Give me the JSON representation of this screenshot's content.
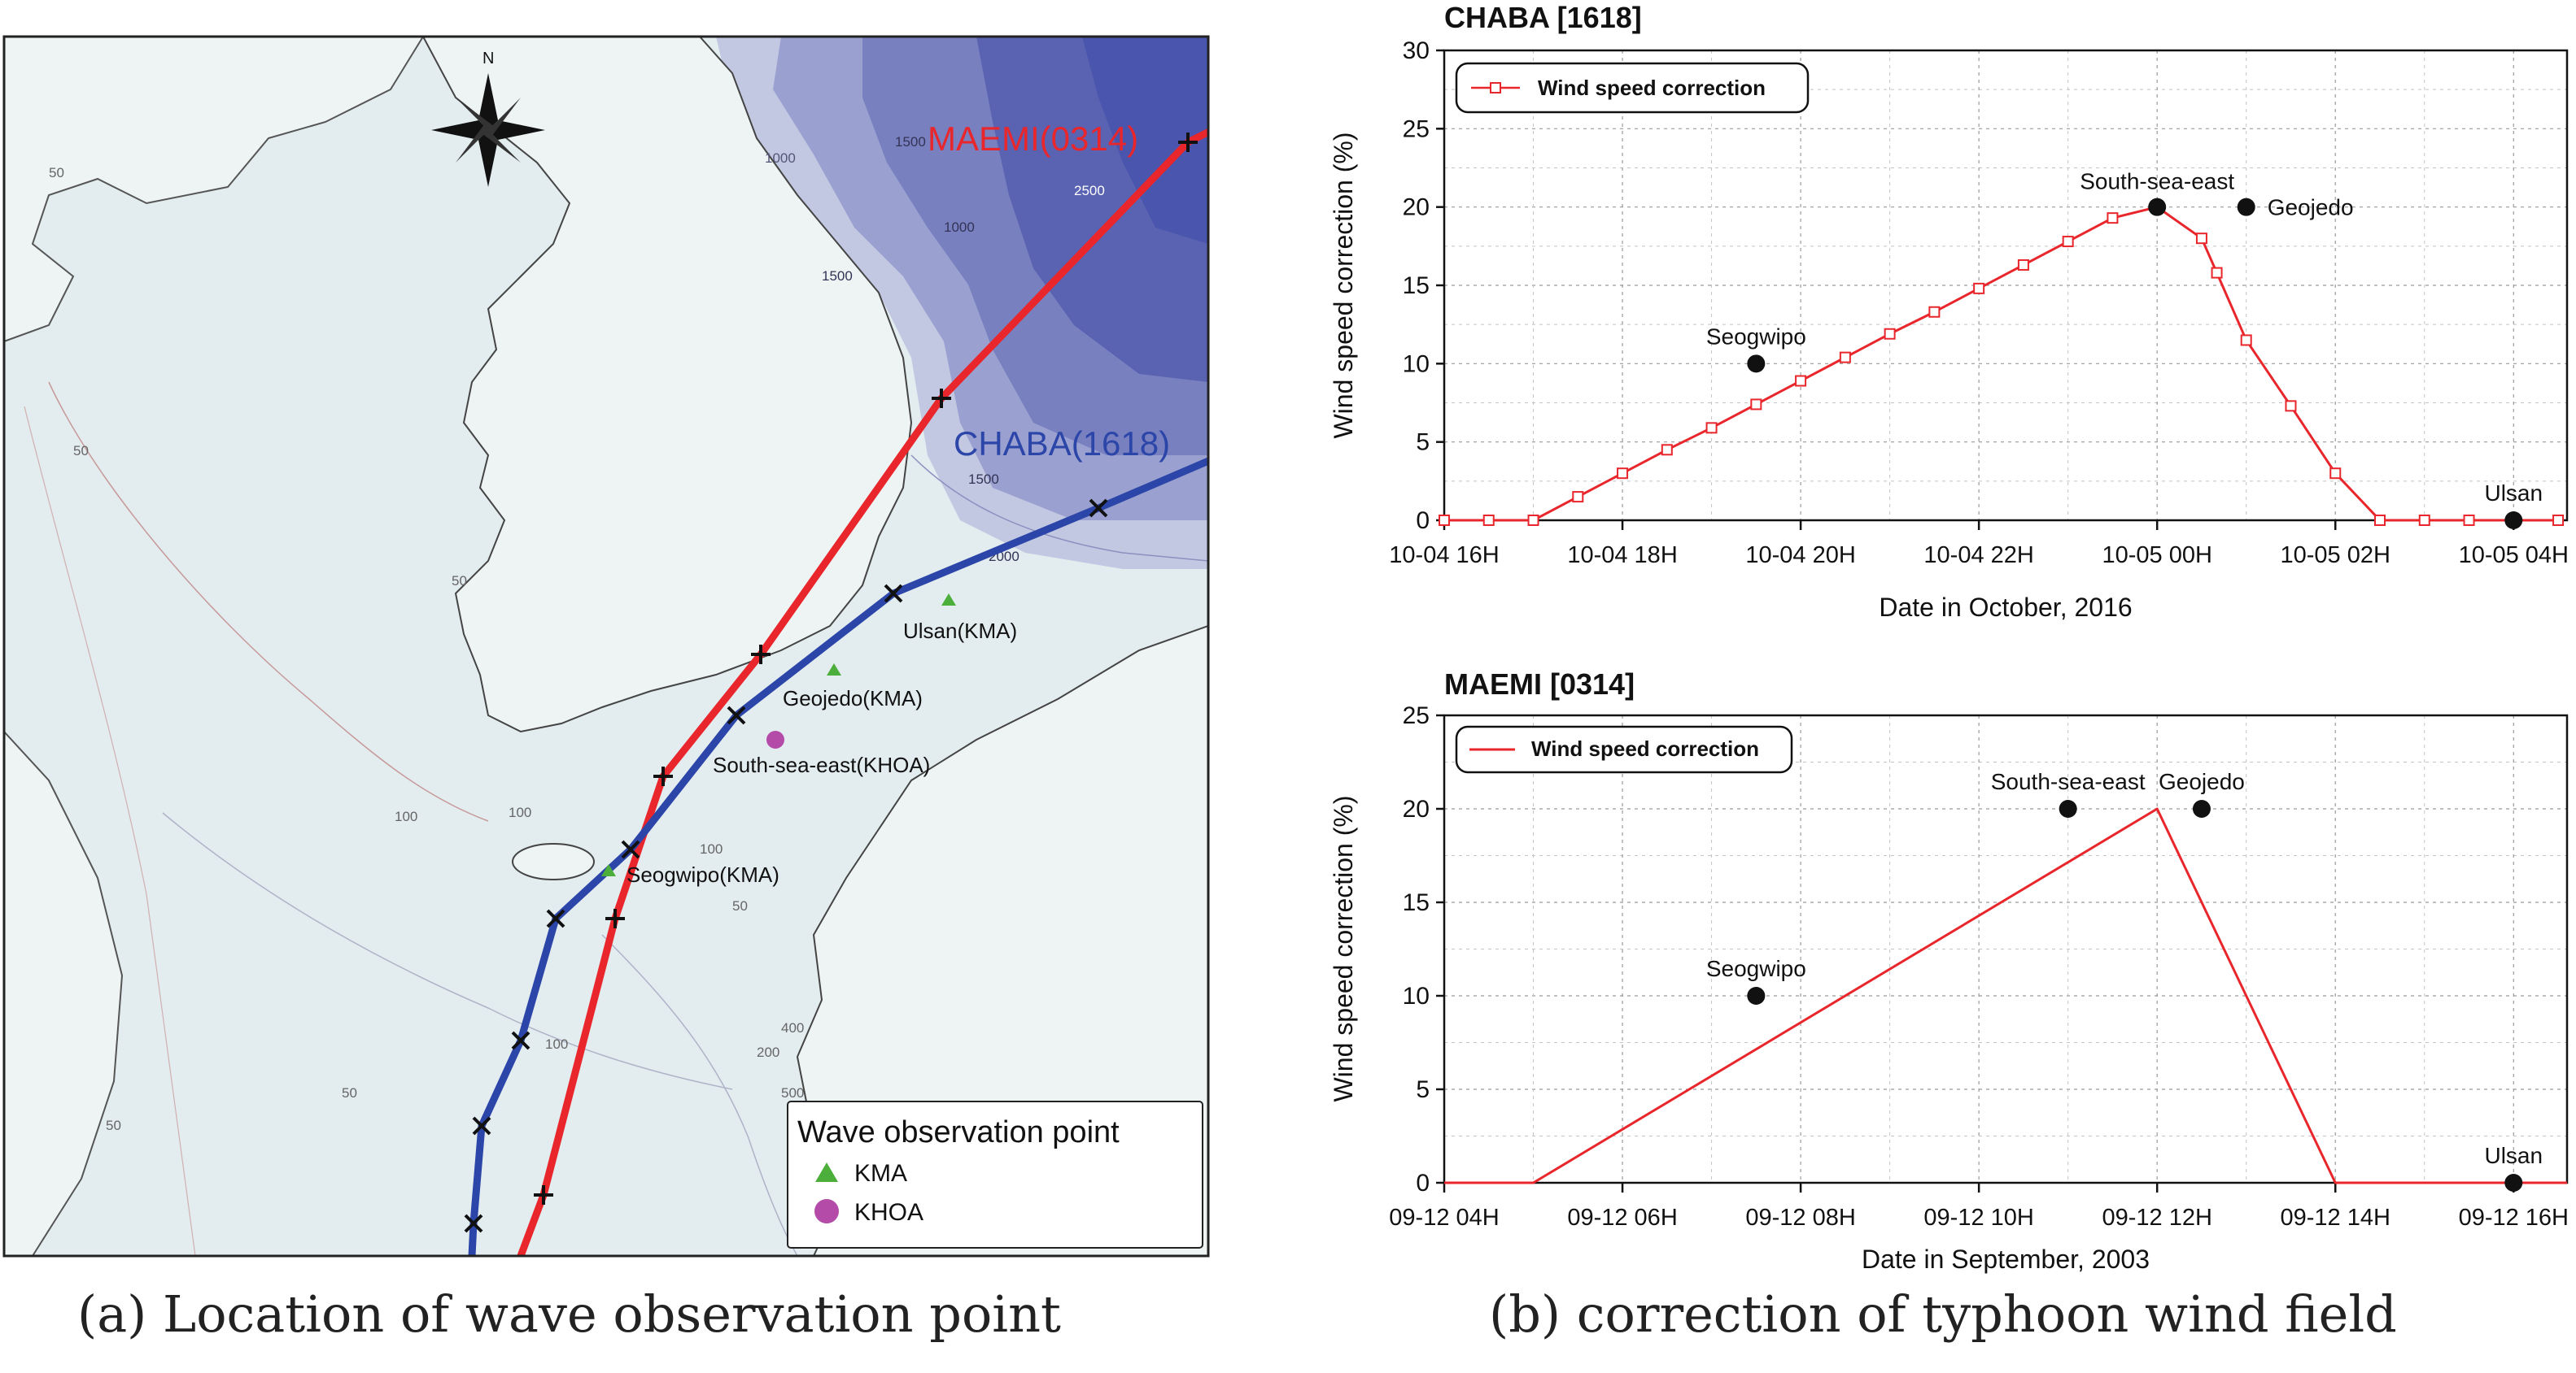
{
  "map": {
    "north_label": "N",
    "tracks": [
      {
        "name": "MAEMI(0314)",
        "color": "#e8262b"
      },
      {
        "name": "CHABA(1618)",
        "color": "#2b45a8"
      }
    ],
    "stations": [
      {
        "label": "Ulsan(KMA)",
        "type": "KMA"
      },
      {
        "label": "Geojedo(KMA)",
        "type": "KMA"
      },
      {
        "label": "South-sea-east(KHOA)",
        "type": "KHOA"
      },
      {
        "label": "Seogwipo(KMA)",
        "type": "KMA"
      }
    ],
    "contour_labels": [
      "50",
      "50",
      "50",
      "50",
      "50",
      "50",
      "100",
      "100",
      "100",
      "100",
      "200",
      "400",
      "500",
      "1000",
      "1000",
      "1500",
      "1500",
      "1500",
      "2000",
      "2500"
    ],
    "legend": {
      "title": "Wave observation point",
      "items": [
        {
          "label": "KMA",
          "color": "#4caf3c"
        },
        {
          "label": "KHOA",
          "color": "#b44ba8"
        }
      ]
    },
    "colors": {
      "land": "#eef3f3",
      "sea_shallow": "#e3ecef",
      "sea_deep": "#4a55ad",
      "coast": "#333333"
    }
  },
  "chart_data": [
    {
      "type": "line",
      "title": "CHABA [1618]",
      "xlabel": "Date in October, 2016",
      "ylabel": "Wind speed correction (%)",
      "x_unit": "hour of day",
      "xlim": [
        16,
        28.6
      ],
      "ylim": [
        0,
        30
      ],
      "yticks": [
        "0",
        "5",
        "10",
        "15",
        "20",
        "25",
        "30"
      ],
      "xticks": [
        {
          "label": "10-04 16H",
          "x": 16
        },
        {
          "label": "10-04 18H",
          "x": 18
        },
        {
          "label": "10-04 20H",
          "x": 20
        },
        {
          "label": "10-04 22H",
          "x": 22
        },
        {
          "label": "10-05 00H",
          "x": 24
        },
        {
          "label": "10-05 02H",
          "x": 26
        },
        {
          "label": "10-05 04H",
          "x": 28
        }
      ],
      "grid": true,
      "legend_position": "top-left",
      "series": [
        {
          "name": "Wind speed correction",
          "color": "#e8262b",
          "marker": "square",
          "x": [
            16.0,
            16.5,
            17.0,
            17.5,
            18.0,
            18.5,
            19.0,
            19.5,
            20.0,
            20.5,
            21.0,
            21.5,
            22.0,
            22.5,
            23.0,
            23.5,
            24.0,
            24.5,
            24.67,
            25.0,
            25.5,
            26.0,
            26.5,
            27.0,
            27.5,
            28.0,
            28.5
          ],
          "y": [
            0,
            0,
            0,
            1.5,
            3.0,
            4.5,
            5.9,
            7.4,
            8.9,
            10.4,
            11.9,
            13.3,
            14.8,
            16.3,
            17.8,
            19.3,
            20.0,
            18.0,
            15.8,
            11.5,
            7.3,
            3.0,
            0,
            0,
            0,
            0,
            0
          ]
        }
      ],
      "points": [
        {
          "label": "Seogwipo",
          "x": 19.5,
          "y": 10
        },
        {
          "label": "South-sea-east",
          "x": 24.0,
          "y": 20
        },
        {
          "label": "Geojedo",
          "x": 25.0,
          "y": 20
        },
        {
          "label": "Ulsan",
          "x": 28.0,
          "y": 0
        }
      ]
    },
    {
      "type": "line",
      "title": "MAEMI [0314]",
      "xlabel": "Date in September, 2003",
      "ylabel": "Wind speed correction (%)",
      "x_unit": "hour of day",
      "xlim": [
        4,
        16.6
      ],
      "ylim": [
        0,
        25
      ],
      "yticks": [
        "0",
        "5",
        "10",
        "15",
        "20",
        "25"
      ],
      "xticks": [
        {
          "label": "09-12 04H",
          "x": 4
        },
        {
          "label": "09-12 06H",
          "x": 6
        },
        {
          "label": "09-12 08H",
          "x": 8
        },
        {
          "label": "09-12 10H",
          "x": 10
        },
        {
          "label": "09-12 12H",
          "x": 12
        },
        {
          "label": "09-12 14H",
          "x": 14
        },
        {
          "label": "09-12 16H",
          "x": 16
        }
      ],
      "grid": true,
      "legend_position": "top-left",
      "series": [
        {
          "name": "Wind speed correction",
          "color": "#e8262b",
          "marker": "none",
          "x": [
            4.0,
            5.0,
            12.0,
            14.0,
            16.6
          ],
          "y": [
            0,
            0,
            20,
            0,
            0
          ]
        }
      ],
      "points": [
        {
          "label": "Seogwipo",
          "x": 7.5,
          "y": 10
        },
        {
          "label": "South-sea-east",
          "x": 11.0,
          "y": 20
        },
        {
          "label": "Geojedo",
          "x": 12.5,
          "y": 20
        },
        {
          "label": "Ulsan",
          "x": 16.0,
          "y": 0
        }
      ]
    }
  ],
  "captions": {
    "a": "(a) Location of wave observation point",
    "b": "(b) correction of typhoon wind field"
  }
}
